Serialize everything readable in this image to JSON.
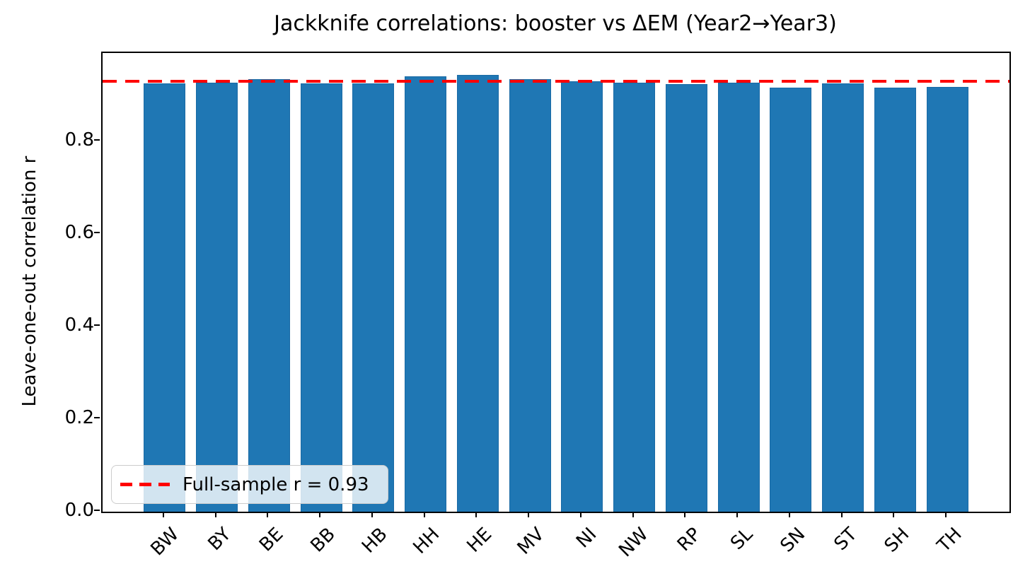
{
  "chart_data": {
    "type": "bar",
    "title": "Jackknife correlations: booster vs ΔEM (Year2→Year3)",
    "xlabel": "",
    "ylabel": "Leave-one-out correlation r",
    "categories": [
      "BW",
      "BY",
      "BE",
      "BB",
      "HB",
      "HH",
      "HE",
      "MV",
      "NI",
      "NW",
      "RP",
      "SL",
      "SN",
      "ST",
      "SH",
      "TH"
    ],
    "values": [
      0.925,
      0.927,
      0.934,
      0.925,
      0.926,
      0.941,
      0.943,
      0.934,
      0.93,
      0.927,
      0.924,
      0.927,
      0.916,
      0.925,
      0.916,
      0.917
    ],
    "bar_color": "#1f77b4",
    "bar_edge_color": "#1a6aa5",
    "ylim": [
      0,
      0.991
    ],
    "ytick_values": [
      0,
      0.2,
      0.4,
      0.6,
      0.8
    ],
    "ytick_labels": [
      "0.0",
      "0.2",
      "0.4",
      "0.6",
      "0.8"
    ],
    "xtick_rotation": 45,
    "grid": false,
    "reference_line": {
      "value": 0.93,
      "color": "#ff0000",
      "style": "dashed",
      "label": "Full-sample r = 0.93"
    },
    "legend": {
      "position": "lower-left",
      "entries": [
        {
          "label": "Full-sample r = 0.93",
          "color": "#ff0000",
          "marker": "dashed-line"
        }
      ]
    }
  }
}
